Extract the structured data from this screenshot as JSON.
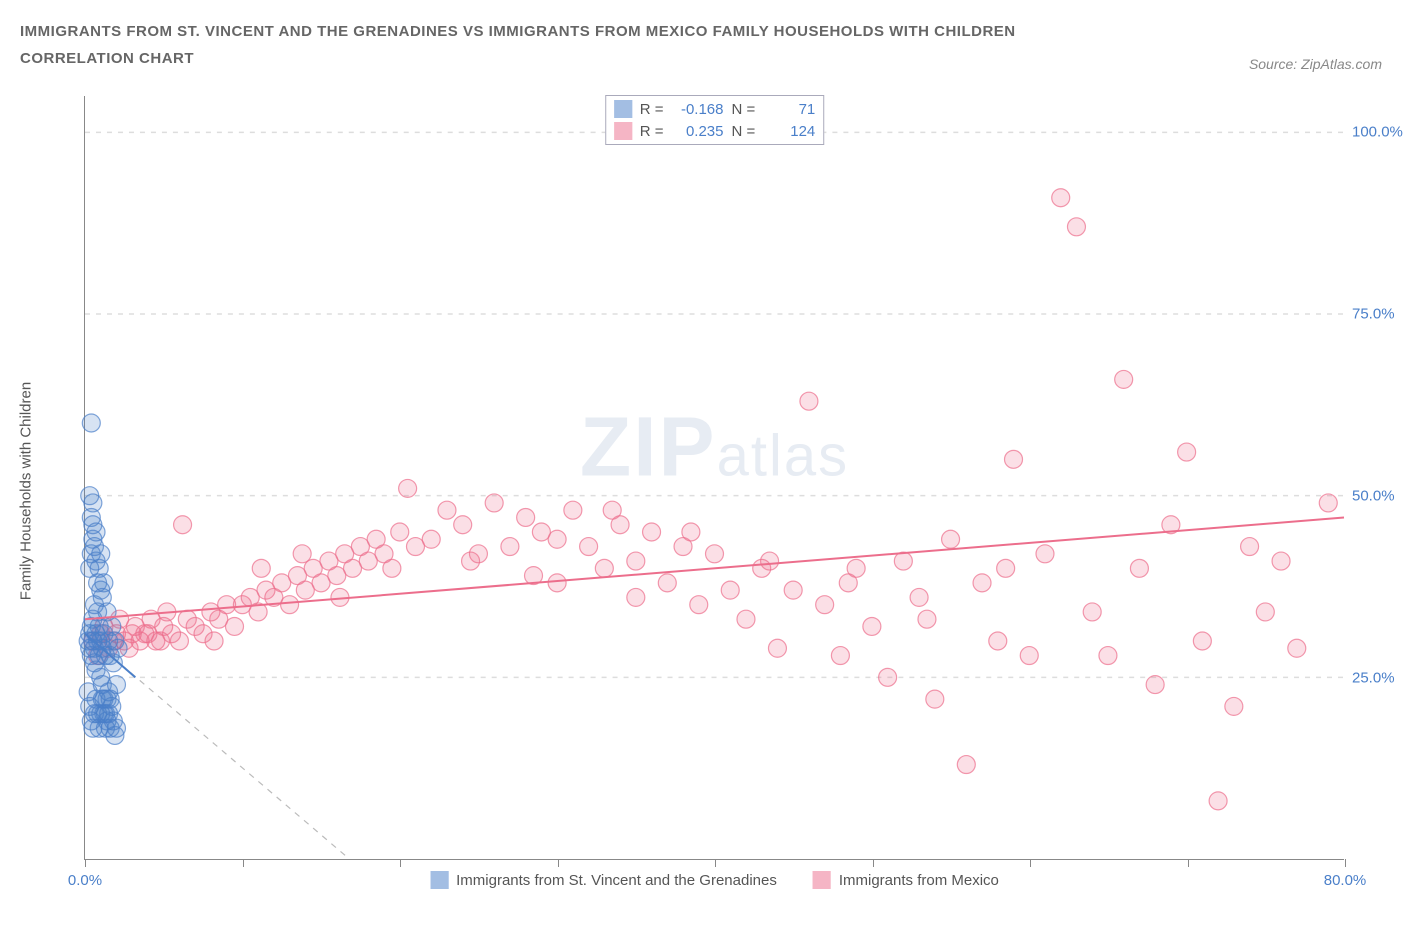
{
  "title": {
    "line1": "IMMIGRANTS FROM ST. VINCENT AND THE GRENADINES VS IMMIGRANTS FROM MEXICO FAMILY HOUSEHOLDS WITH CHILDREN",
    "line2": "CORRELATION CHART",
    "color": "#666666",
    "fontsize": 15
  },
  "source": {
    "label": "Source:",
    "value": "ZipAtlas.com",
    "color": "#888888"
  },
  "watermark": {
    "zip": "ZIP",
    "atlas": "atlas"
  },
  "chart": {
    "type": "scatter",
    "background_color": "#ffffff",
    "grid_color": "#dddddd",
    "axis_color": "#888888",
    "tick_label_color": "#4a7fc9",
    "xlim": [
      0,
      80
    ],
    "ylim": [
      0,
      105
    ],
    "x_ticks": [
      0,
      10,
      20,
      30,
      40,
      50,
      60,
      70,
      80
    ],
    "x_tick_labels_shown": {
      "0": "0.0%",
      "80": "80.0%"
    },
    "y_ticks": [
      25,
      50,
      75,
      100
    ],
    "y_tick_labels": {
      "25": "25.0%",
      "50": "50.0%",
      "75": "75.0%",
      "100": "100.0%"
    },
    "y_axis_label": "Family Households with Children",
    "marker_radius": 9,
    "marker_stroke_width": 1.2,
    "marker_fill_opacity": 0.22,
    "trend_line_width": 2.0,
    "dash_line_color": "#bbbbbb"
  },
  "series": {
    "svg": {
      "label": "Immigrants from St. Vincent and the Grenadines",
      "color": "#4a7fc9",
      "fill": "#4a7fc9",
      "r": -0.168,
      "n": 71,
      "trend": {
        "x1": 0,
        "y1": 31,
        "x2": 3.2,
        "y2": 25
      },
      "dash": {
        "x1": 0,
        "y1": 31,
        "x2": 16.8,
        "y2": 0
      },
      "points": [
        [
          0.2,
          30
        ],
        [
          0.3,
          29
        ],
        [
          0.3,
          31
        ],
        [
          0.4,
          28
        ],
        [
          0.4,
          32
        ],
        [
          0.5,
          30
        ],
        [
          0.5,
          33
        ],
        [
          0.6,
          29
        ],
        [
          0.6,
          27
        ],
        [
          0.6,
          35
        ],
        [
          0.7,
          31
        ],
        [
          0.7,
          26
        ],
        [
          0.8,
          30
        ],
        [
          0.8,
          34
        ],
        [
          0.9,
          28
        ],
        [
          0.9,
          32
        ],
        [
          1.0,
          25
        ],
        [
          1.0,
          30
        ],
        [
          1.0,
          37
        ],
        [
          1.1,
          24
        ],
        [
          1.1,
          29
        ],
        [
          1.2,
          22
        ],
        [
          1.2,
          31
        ],
        [
          1.3,
          20
        ],
        [
          1.3,
          28
        ],
        [
          1.4,
          34
        ],
        [
          1.4,
          19
        ],
        [
          1.5,
          30
        ],
        [
          1.5,
          23
        ],
        [
          1.6,
          18
        ],
        [
          1.6,
          28
        ],
        [
          1.7,
          21
        ],
        [
          1.7,
          32
        ],
        [
          1.8,
          19
        ],
        [
          1.8,
          27
        ],
        [
          1.9,
          17
        ],
        [
          1.9,
          30
        ],
        [
          2.0,
          24
        ],
        [
          2.0,
          18
        ],
        [
          2.1,
          29
        ],
        [
          0.3,
          40
        ],
        [
          0.4,
          42
        ],
        [
          0.5,
          44
        ],
        [
          0.4,
          47
        ],
        [
          0.5,
          49
        ],
        [
          0.3,
          50
        ],
        [
          0.6,
          43
        ],
        [
          0.7,
          41
        ],
        [
          0.4,
          60
        ],
        [
          0.5,
          46
        ],
        [
          0.8,
          38
        ],
        [
          0.9,
          40
        ],
        [
          1.0,
          42
        ],
        [
          0.7,
          45
        ],
        [
          1.1,
          36
        ],
        [
          1.2,
          38
        ],
        [
          0.2,
          23
        ],
        [
          0.3,
          21
        ],
        [
          0.4,
          19
        ],
        [
          0.5,
          18
        ],
        [
          0.6,
          20
        ],
        [
          0.7,
          22
        ],
        [
          0.8,
          20
        ],
        [
          0.9,
          18
        ],
        [
          1.0,
          20
        ],
        [
          1.1,
          22
        ],
        [
          1.2,
          20
        ],
        [
          1.3,
          18
        ],
        [
          1.4,
          22
        ],
        [
          1.5,
          20
        ],
        [
          1.6,
          22
        ]
      ]
    },
    "mex": {
      "label": "Immigrants from Mexico",
      "color": "#ec6e8c",
      "fill": "#ec6e8c",
      "r": 0.235,
      "n": 124,
      "trend": {
        "x1": 0,
        "y1": 33,
        "x2": 80,
        "y2": 47
      },
      "points": [
        [
          0.5,
          30
        ],
        [
          1,
          31
        ],
        [
          1.5,
          29
        ],
        [
          2,
          31
        ],
        [
          2.5,
          30
        ],
        [
          3,
          31
        ],
        [
          3.5,
          30
        ],
        [
          4,
          31
        ],
        [
          4.5,
          30
        ],
        [
          5,
          32
        ],
        [
          5.5,
          31
        ],
        [
          6,
          30
        ],
        [
          6.5,
          33
        ],
        [
          7,
          32
        ],
        [
          7.5,
          31
        ],
        [
          8,
          34
        ],
        [
          8.5,
          33
        ],
        [
          9,
          35
        ],
        [
          9.5,
          32
        ],
        [
          10,
          35
        ],
        [
          10.5,
          36
        ],
        [
          11,
          34
        ],
        [
          11.5,
          37
        ],
        [
          12,
          36
        ],
        [
          12.5,
          38
        ],
        [
          13,
          35
        ],
        [
          13.5,
          39
        ],
        [
          14,
          37
        ],
        [
          14.5,
          40
        ],
        [
          15,
          38
        ],
        [
          15.5,
          41
        ],
        [
          16,
          39
        ],
        [
          16.5,
          42
        ],
        [
          17,
          40
        ],
        [
          17.5,
          43
        ],
        [
          18,
          41
        ],
        [
          18.5,
          44
        ],
        [
          19,
          42
        ],
        [
          19.5,
          40
        ],
        [
          20,
          45
        ],
        [
          21,
          43
        ],
        [
          22,
          44
        ],
        [
          23,
          48
        ],
        [
          24,
          46
        ],
        [
          25,
          42
        ],
        [
          26,
          49
        ],
        [
          27,
          43
        ],
        [
          28,
          47
        ],
        [
          29,
          45
        ],
        [
          30,
          44
        ],
        [
          30,
          38
        ],
        [
          31,
          48
        ],
        [
          32,
          43
        ],
        [
          33,
          40
        ],
        [
          34,
          46
        ],
        [
          35,
          41
        ],
        [
          35,
          36
        ],
        [
          36,
          45
        ],
        [
          37,
          38
        ],
        [
          38,
          43
        ],
        [
          39,
          35
        ],
        [
          40,
          42
        ],
        [
          41,
          37
        ],
        [
          42,
          33
        ],
        [
          43,
          40
        ],
        [
          44,
          29
        ],
        [
          45,
          37
        ],
        [
          46,
          63
        ],
        [
          47,
          35
        ],
        [
          48,
          28
        ],
        [
          49,
          40
        ],
        [
          50,
          32
        ],
        [
          51,
          25
        ],
        [
          52,
          41
        ],
        [
          53,
          36
        ],
        [
          54,
          22
        ],
        [
          55,
          44
        ],
        [
          56,
          13
        ],
        [
          57,
          38
        ],
        [
          58,
          30
        ],
        [
          59,
          55
        ],
        [
          60,
          28
        ],
        [
          61,
          42
        ],
        [
          62,
          91
        ],
        [
          63,
          87
        ],
        [
          64,
          34
        ],
        [
          65,
          28
        ],
        [
          66,
          66
        ],
        [
          67,
          40
        ],
        [
          68,
          24
        ],
        [
          69,
          46
        ],
        [
          70,
          56
        ],
        [
          71,
          30
        ],
        [
          72,
          8
        ],
        [
          73,
          21
        ],
        [
          74,
          43
        ],
        [
          75,
          34
        ],
        [
          76,
          41
        ],
        [
          77,
          29
        ],
        [
          79,
          49
        ],
        [
          0.8,
          28
        ],
        [
          1.2,
          32
        ],
        [
          1.8,
          30
        ],
        [
          2.2,
          33
        ],
        [
          2.8,
          29
        ],
        [
          3.2,
          32
        ],
        [
          3.8,
          31
        ],
        [
          4.2,
          33
        ],
        [
          4.8,
          30
        ],
        [
          5.2,
          34
        ],
        [
          6.2,
          46
        ],
        [
          8.2,
          30
        ],
        [
          11.2,
          40
        ],
        [
          13.8,
          42
        ],
        [
          16.2,
          36
        ],
        [
          20.5,
          51
        ],
        [
          24.5,
          41
        ],
        [
          28.5,
          39
        ],
        [
          33.5,
          48
        ],
        [
          38.5,
          45
        ],
        [
          43.5,
          41
        ],
        [
          48.5,
          38
        ],
        [
          53.5,
          33
        ],
        [
          58.5,
          40
        ]
      ]
    }
  },
  "stats_box": {
    "r_label": "R =",
    "n_label": "N ="
  },
  "legend_swatch": {
    "size": 18
  }
}
